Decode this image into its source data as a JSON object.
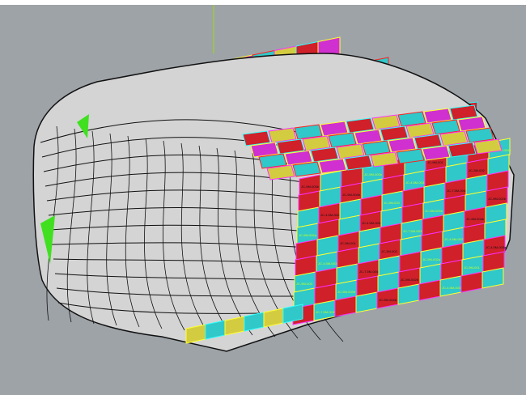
{
  "viewport": {
    "background": "#9ea3a8",
    "axis_color": "#9be000",
    "shell_color": "#d4d4d4",
    "edge_color": "#111111",
    "panel_colors": [
      "#d0202a",
      "#d030d0",
      "#30c8c8",
      "#d4cc40"
    ],
    "panel_edge_colors": [
      "#ff2020",
      "#ff30ff",
      "#30ffff",
      "#ffff30"
    ],
    "panel_labels": [
      "JC-9M-003b",
      "JC-9M-002b",
      "JC-9M-001",
      "JC-7.5M-003b",
      "JC-9M-004b",
      "JC-4.5M-003b",
      "JC-3M-002",
      "JC-4.5M-002b",
      "JC-9M-003",
      "JC-7.5M-004b",
      "JC-9M-002a",
      "JC-4.5M-003a"
    ]
  }
}
